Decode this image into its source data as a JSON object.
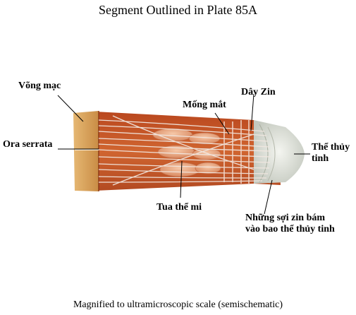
{
  "title": "Segment Outlined in Plate 85A",
  "caption": "Magnified to ultramicroscopic scale (semischematic)",
  "labels": {
    "retina": "Võng mạc",
    "ora_serrata": "Ora serrata",
    "iris": "Mống mắt",
    "zonule": "Dây Zin",
    "lens": [
      "Thể thủy",
      "tinh"
    ],
    "ciliary_processes": "Tua thể mi",
    "lens_capsule_fibers": [
      "Những sợi zin bám",
      "vào bao thể thủy tinh"
    ]
  },
  "colors": {
    "retina_band": "#d9a055",
    "ciliary_body": "#c8582a",
    "ciliary_process": "#e9a37f",
    "lens_capsule": "#d8dbd2",
    "zonule_fiber": "#f1e7e0"
  }
}
